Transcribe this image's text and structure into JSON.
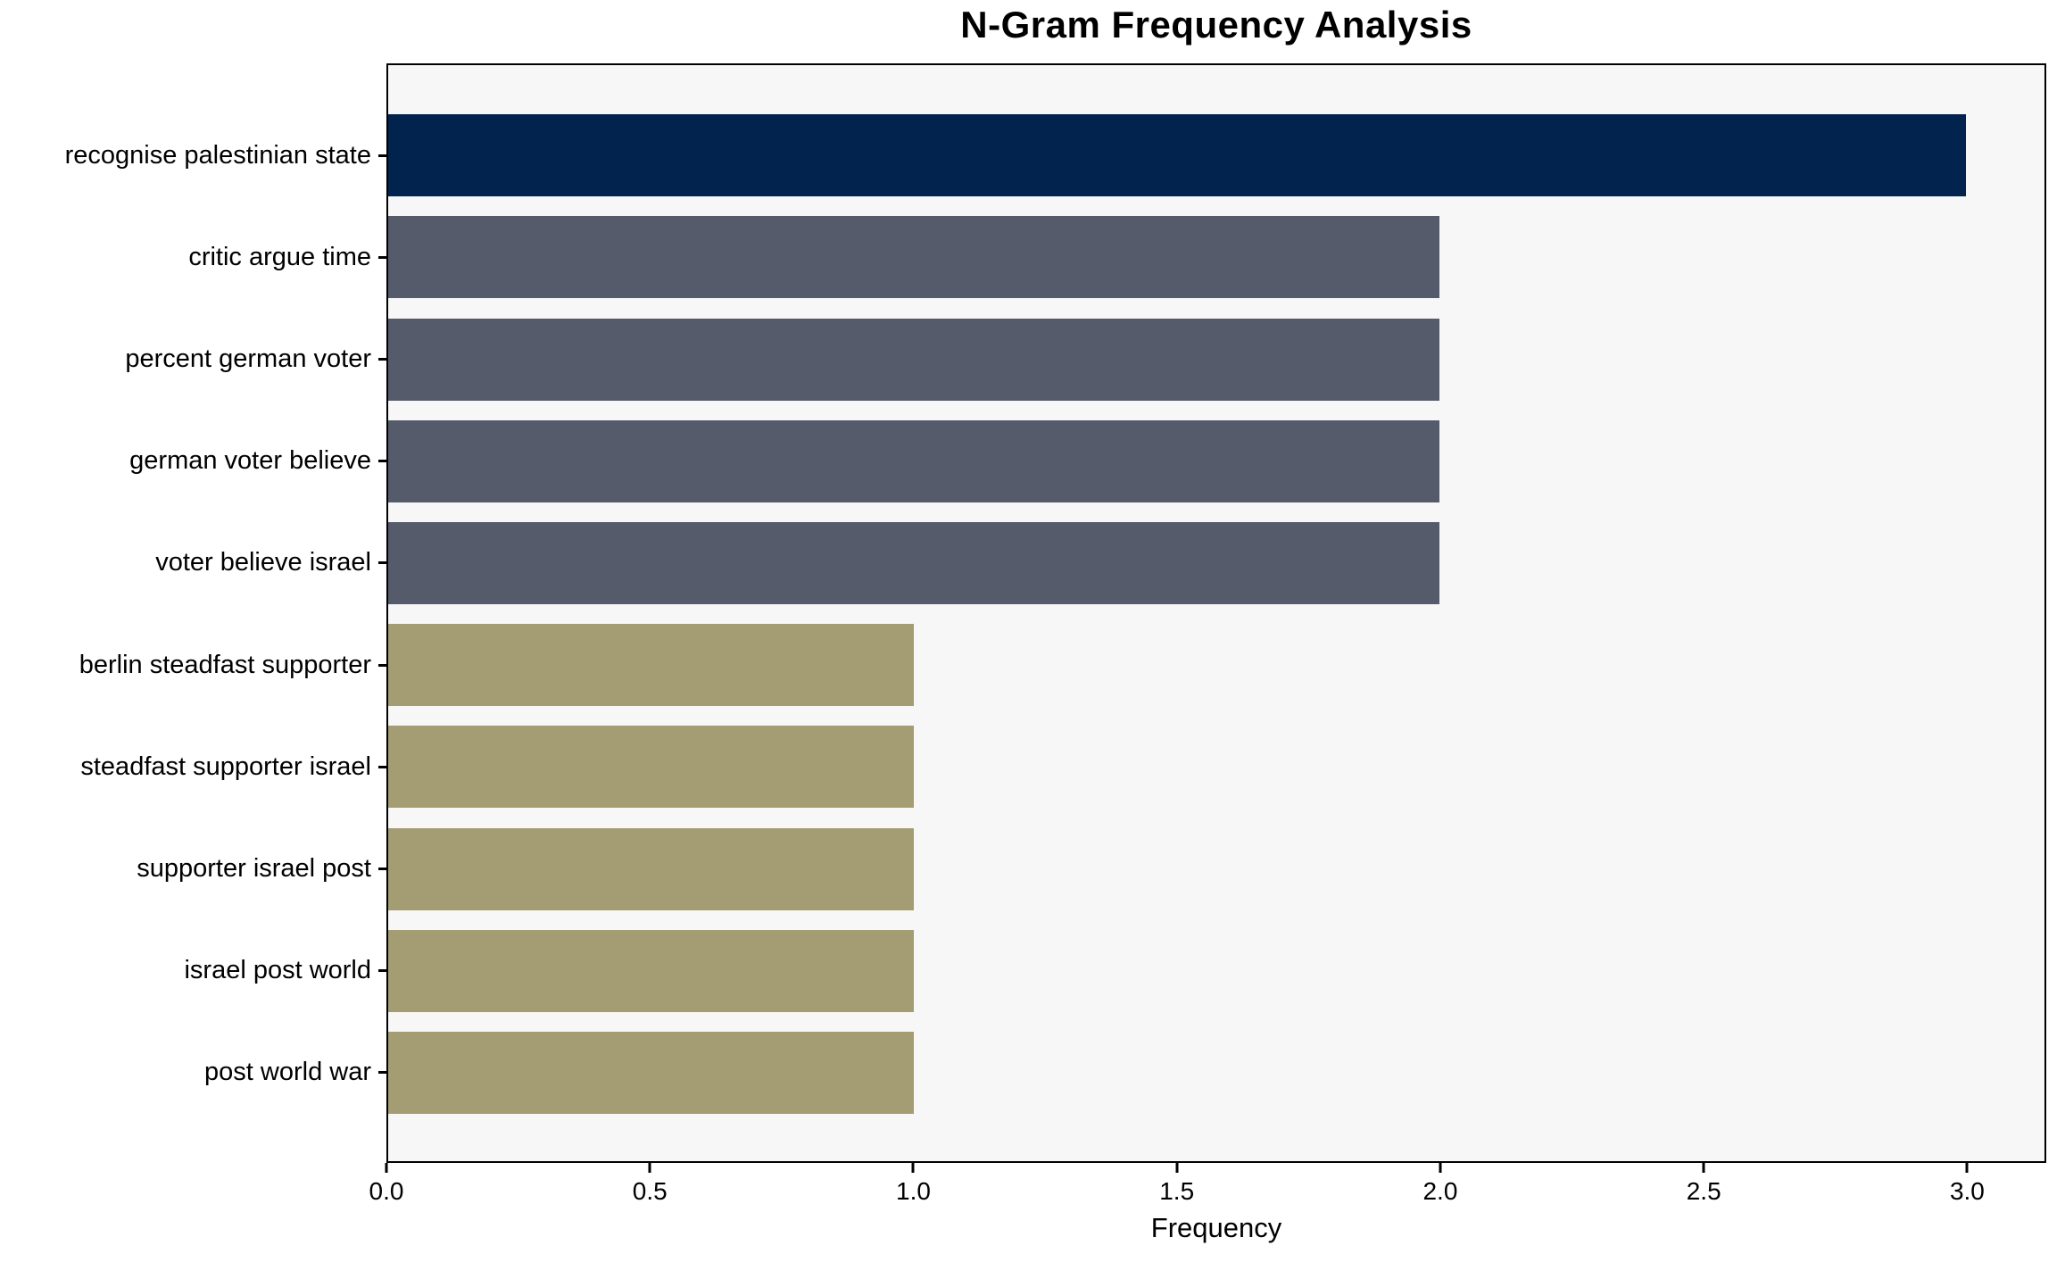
{
  "chart_data": {
    "type": "bar",
    "orientation": "horizontal",
    "title": "N-Gram Frequency Analysis",
    "xlabel": "Frequency",
    "ylabel": "",
    "xlim": [
      0,
      3.15
    ],
    "grid": false,
    "legend": false,
    "categories": [
      "recognise palestinian state",
      "critic argue time",
      "percent german voter",
      "german voter believe",
      "voter believe israel",
      "berlin steadfast supporter",
      "steadfast supporter israel",
      "supporter israel post",
      "israel post world",
      "post world war"
    ],
    "values": [
      3,
      2,
      2,
      2,
      2,
      1,
      1,
      1,
      1,
      1
    ],
    "x_ticks": [
      "0.0",
      "0.5",
      "1.0",
      "1.5",
      "2.0",
      "2.5",
      "3.0"
    ],
    "bar_colors": [
      "#02234E",
      "#565B6B",
      "#565B6B",
      "#565B6B",
      "#565B6B",
      "#A49C72",
      "#A49C72",
      "#A49C72",
      "#A49C72",
      "#A49C72"
    ],
    "colors": {
      "navy": "#02234E",
      "slate": "#565B6B",
      "olive": "#A49C72",
      "plot_background": "#F7F7F8",
      "frame": "#000000",
      "text": "#000000"
    }
  }
}
